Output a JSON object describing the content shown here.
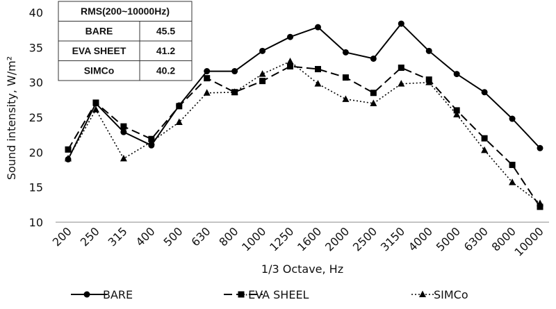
{
  "chart_data": {
    "type": "line",
    "xlabel": "1/3 Octave, Hz",
    "ylabel": "Sound intensity, W/m²",
    "ylim": [
      10,
      40
    ],
    "yticks": [
      10,
      15,
      20,
      25,
      30,
      35,
      40
    ],
    "grid": false,
    "legend_position": "bottom",
    "categories": [
      "200",
      "250",
      "315",
      "400",
      "500",
      "630",
      "800",
      "1000",
      "1250",
      "1600",
      "2000",
      "2500",
      "3150",
      "4000",
      "5000",
      "6300",
      "8000",
      "10000"
    ],
    "series": [
      {
        "name": "BARE",
        "marker": "circle",
        "dash": "solid",
        "color": "#000000",
        "values": [
          19.0,
          27.0,
          22.9,
          21.0,
          26.7,
          31.6,
          31.6,
          34.5,
          36.5,
          37.9,
          34.3,
          33.4,
          38.4,
          34.5,
          31.2,
          28.6,
          24.8,
          20.6
        ]
      },
      {
        "name": "EVA SHEEL",
        "marker": "square",
        "dash": "long-dash",
        "color": "#000000",
        "values": [
          20.4,
          27.1,
          23.7,
          21.9,
          26.6,
          30.6,
          28.6,
          30.2,
          32.3,
          31.9,
          30.7,
          28.5,
          32.1,
          30.4,
          26.0,
          22.0,
          18.2,
          12.2
        ]
      },
      {
        "name": "SIMCo",
        "marker": "triangle",
        "dash": "dotted",
        "color": "#000000",
        "values": [
          19.1,
          26.1,
          19.1,
          21.5,
          24.3,
          28.5,
          28.6,
          31.2,
          33.0,
          29.8,
          27.6,
          27.0,
          29.8,
          30.0,
          25.4,
          20.3,
          15.7,
          12.7
        ]
      }
    ],
    "legend_labels": [
      "BARE",
      "·EVA SHEEL",
      "SIMCo"
    ],
    "inset_table": {
      "header": "RMS(200~10000Hz)",
      "rows": [
        {
          "label": "BARE",
          "value": "45.5"
        },
        {
          "label": "EVA SHEET",
          "value": "41.2"
        },
        {
          "label": "SIMCo",
          "value": "40.2"
        }
      ]
    }
  }
}
